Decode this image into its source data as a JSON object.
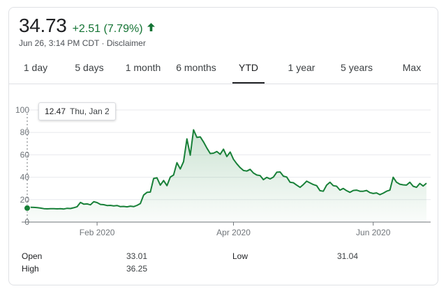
{
  "quote": {
    "price": "34.73",
    "change": "+2.51 (7.79%)",
    "timestamp": "Jun 26, 3:14 PM CDT",
    "separator": " · ",
    "disclaimer": "Disclaimer",
    "trend_color": "#137333"
  },
  "tabs": [
    "1 day",
    "5 days",
    "1 month",
    "6 months",
    "YTD",
    "1 year",
    "5 years",
    "Max"
  ],
  "active_tab": "YTD",
  "tooltip": {
    "value": "12.47",
    "date": "Thu, Jan 2"
  },
  "stats": [
    {
      "label": "Open",
      "value": "33.01"
    },
    {
      "label": "High",
      "value": "36.25"
    },
    {
      "label": "Low",
      "value": "31.04"
    }
  ],
  "chart_data": {
    "type": "area",
    "line_color": "#188038",
    "y_ticks": [
      0,
      20,
      40,
      60,
      80,
      100
    ],
    "ylim": [
      0,
      100
    ],
    "x_ticks": [
      {
        "label": "Feb 2020",
        "index": 21
      },
      {
        "label": "Apr 2020",
        "index": 62
      },
      {
        "label": "Jun 2020",
        "index": 104
      }
    ],
    "grid": true,
    "values": [
      12.47,
      13.2,
      13.1,
      12.9,
      12.5,
      12.0,
      11.8,
      11.9,
      11.9,
      11.8,
      11.9,
      11.7,
      12.3,
      12.1,
      12.8,
      13.7,
      17.5,
      16.0,
      16.2,
      15.4,
      18.2,
      17.4,
      15.8,
      15.5,
      14.8,
      14.9,
      14.5,
      14.8,
      13.8,
      14.0,
      13.6,
      14.2,
      13.8,
      14.9,
      16.5,
      24.1,
      26.5,
      26.8,
      38.9,
      39.5,
      33.0,
      37.1,
      32.5,
      40.1,
      42.0,
      53.0,
      47.4,
      53.9,
      74.2,
      59.7,
      82.3,
      75.5,
      76.0,
      71.5,
      66.0,
      61.2,
      61.5,
      63.0,
      60.5,
      65.0,
      58.5,
      62.5,
      56.0,
      52.0,
      48.6,
      46.0,
      45.5,
      47.0,
      43.8,
      42.0,
      41.5,
      37.8,
      39.9,
      38.5,
      40.1,
      44.5,
      44.7,
      41.0,
      40.2,
      35.5,
      35.1,
      33.0,
      31.0,
      33.5,
      36.5,
      35.0,
      33.5,
      32.5,
      28.0,
      27.5,
      33.0,
      35.5,
      32.5,
      32.0,
      28.5,
      30.0,
      28.0,
      26.5,
      28.2,
      28.5,
      27.5,
      27.5,
      28.2,
      26.3,
      25.5,
      26.0,
      24.5,
      25.8,
      27.5,
      28.5,
      40.0,
      35.5,
      33.8,
      33.2,
      33.0,
      35.5,
      32.0,
      31.0,
      34.5,
      32.2,
      34.73
    ]
  }
}
